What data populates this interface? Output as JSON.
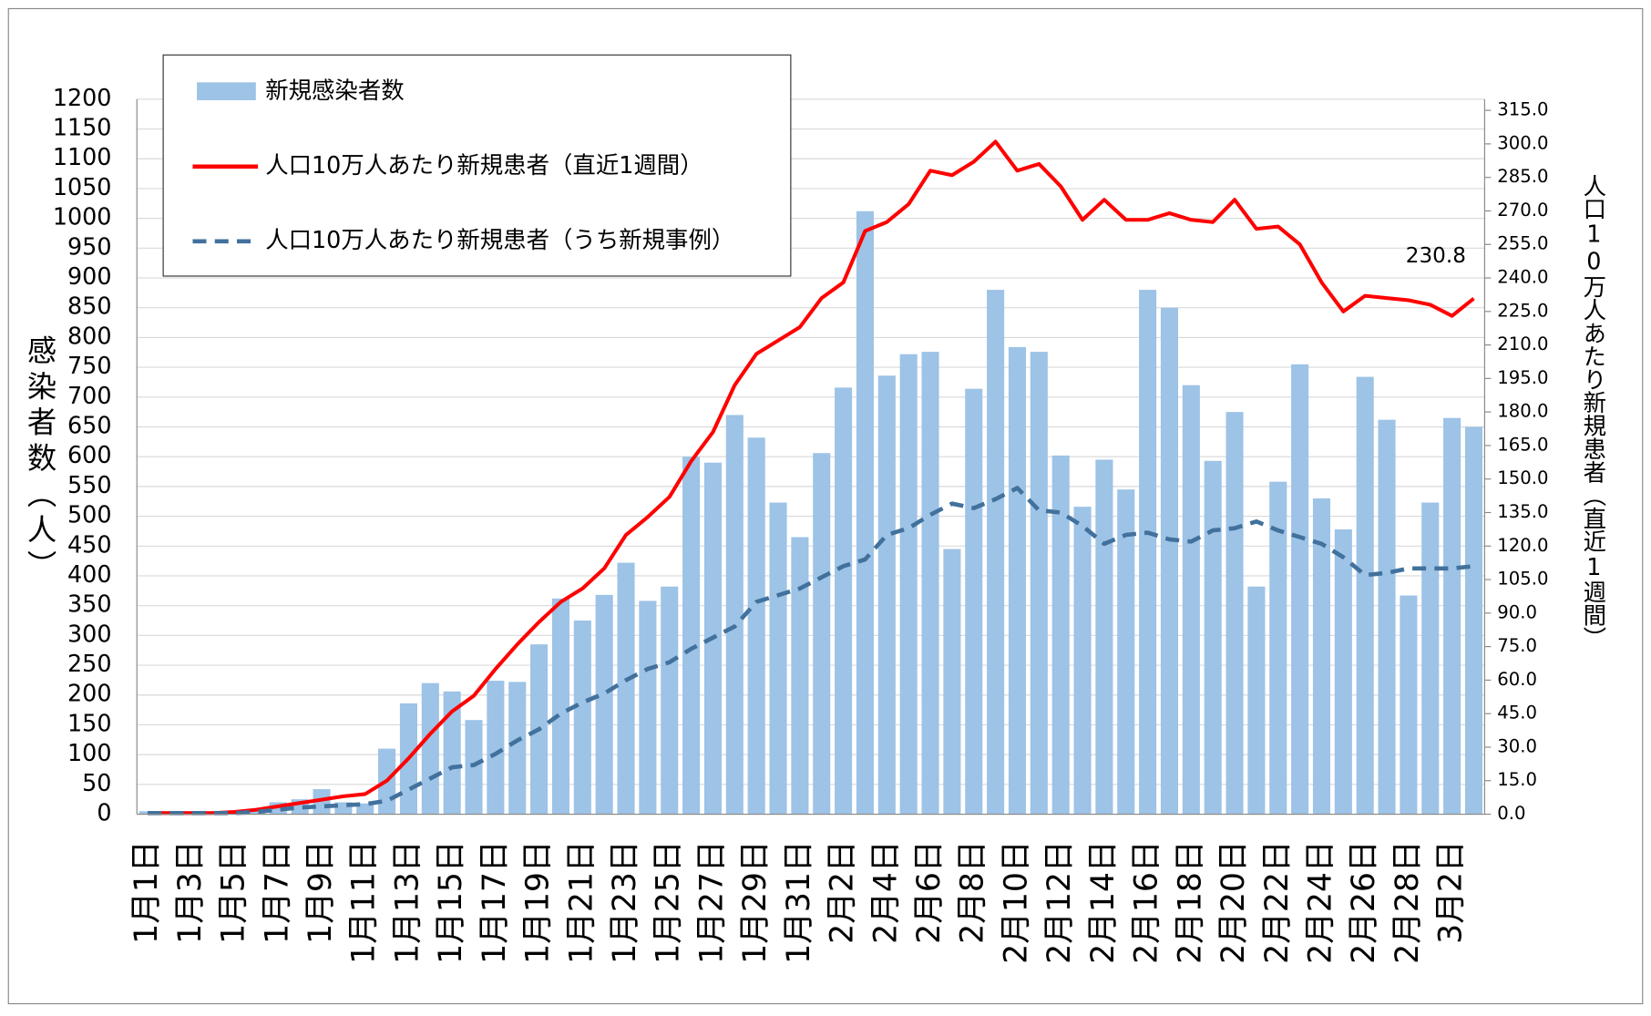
{
  "chart_data": {
    "type": "bar",
    "y_label": "感染者数（人）",
    "y2_label": "人口10万人あたり新規患者（直近1週間）",
    "categories": [
      "1月1日",
      null,
      "1月3日",
      null,
      "1月5日",
      null,
      "1月7日",
      null,
      "1月9日",
      null,
      "1月11日",
      null,
      "1月13日",
      null,
      "1月15日",
      null,
      "1月17日",
      null,
      "1月19日",
      null,
      "1月21日",
      null,
      "1月23日",
      null,
      "1月25日",
      null,
      "1月27日",
      null,
      "1月29日",
      null,
      "1月31日",
      null,
      "2月2日",
      null,
      "2月4日",
      null,
      "2月6日",
      null,
      "2月8日",
      null,
      "2月10日",
      null,
      "2月12日",
      null,
      "2月14日",
      null,
      "2月16日",
      null,
      "2月18日",
      null,
      "2月20日",
      null,
      "2月22日",
      null,
      "2月24日",
      null,
      "2月26日",
      null,
      "2月28日",
      null,
      "3月2日",
      null
    ],
    "series": [
      {
        "name": "新規感染者数",
        "type": "bar",
        "axis": "y",
        "color": "#9dc3e6",
        "values": [
          5,
          5,
          5,
          3,
          5,
          8,
          20,
          25,
          42,
          20,
          18,
          110,
          186,
          220,
          206,
          158,
          224,
          222,
          285,
          362,
          325,
          368,
          422,
          358,
          382,
          600,
          590,
          670,
          632,
          523,
          465,
          606,
          716,
          1012,
          736,
          772,
          776,
          445,
          714,
          880,
          784,
          776,
          602,
          516,
          595,
          545,
          880,
          850,
          720,
          593,
          675,
          382,
          558,
          755,
          530,
          478,
          734,
          662,
          367,
          523,
          665,
          650
        ]
      },
      {
        "name": "人口10万人あたり新規患者（直近1週間）",
        "type": "line",
        "axis": "y2",
        "color": "#ff0000",
        "line_style": "solid",
        "values": [
          0.5,
          0.5,
          0.5,
          0.5,
          1,
          2,
          3.5,
          5,
          6.5,
          8,
          9,
          15,
          25,
          36,
          46,
          53,
          65,
          76,
          86,
          95,
          101,
          110,
          125,
          133,
          142,
          158,
          171,
          192,
          206,
          212,
          218,
          231,
          238,
          261,
          265,
          273,
          288,
          286,
          292,
          301,
          288,
          291,
          281,
          266,
          275,
          266,
          266,
          269,
          266,
          265,
          275,
          262,
          263,
          255,
          238,
          225,
          232,
          231,
          230,
          228,
          223,
          230.8
        ]
      },
      {
        "name": "人口10万人あたり新規患者（うち新規事例）",
        "type": "line",
        "axis": "y2",
        "color": "#41719c",
        "line_style": "dashed",
        "values": [
          0.5,
          0.5,
          0.5,
          0.5,
          0.5,
          1,
          2,
          3,
          3.5,
          4,
          4.5,
          6,
          11,
          16,
          21,
          22,
          27,
          33,
          38,
          45,
          50,
          54,
          60,
          65,
          68,
          74,
          79,
          84,
          95,
          98,
          101,
          106,
          111,
          114,
          125,
          128,
          134,
          139,
          137,
          141,
          146,
          136,
          135,
          129,
          121,
          125,
          126,
          123,
          122,
          127,
          128,
          131,
          127,
          124,
          121,
          115,
          107,
          108,
          110,
          110,
          110,
          111
        ]
      }
    ],
    "ylim": [
      0,
      1200
    ],
    "yticks": [
      0,
      50,
      100,
      150,
      200,
      250,
      300,
      350,
      400,
      450,
      500,
      550,
      600,
      650,
      700,
      750,
      800,
      850,
      900,
      950,
      1000,
      1050,
      1100,
      1150,
      1200
    ],
    "y2lim": [
      0,
      320
    ],
    "y2ticks": [
      {
        "value": 0,
        "label": "0.0"
      },
      {
        "value": 15,
        "label": "15.0"
      },
      {
        "value": 30,
        "label": "30.0"
      },
      {
        "value": 45,
        "label": "45.0"
      },
      {
        "value": 60,
        "label": "60.0"
      },
      {
        "value": 75,
        "label": "75.0"
      },
      {
        "value": 90,
        "label": "90.0"
      },
      {
        "value": 105,
        "label": "105.0"
      },
      {
        "value": 120,
        "label": "120.0"
      },
      {
        "value": 135,
        "label": "135.0"
      },
      {
        "value": 150,
        "label": "150.0"
      },
      {
        "value": 165,
        "label": "165.0"
      },
      {
        "value": 180,
        "label": "180.0"
      },
      {
        "value": 195,
        "label": "195.0"
      },
      {
        "value": 210,
        "label": "210.0"
      },
      {
        "value": 225,
        "label": "225.0"
      },
      {
        "value": 240,
        "label": "240.0"
      },
      {
        "value": 255,
        "label": "255.0"
      },
      {
        "value": 270,
        "label": "270.0"
      },
      {
        "value": 285,
        "label": "285.0"
      },
      {
        "value": 300,
        "label": "300.0"
      },
      {
        "value": 315,
        "label": "315.0"
      }
    ],
    "grid": true,
    "legend": "upper left"
  }
}
